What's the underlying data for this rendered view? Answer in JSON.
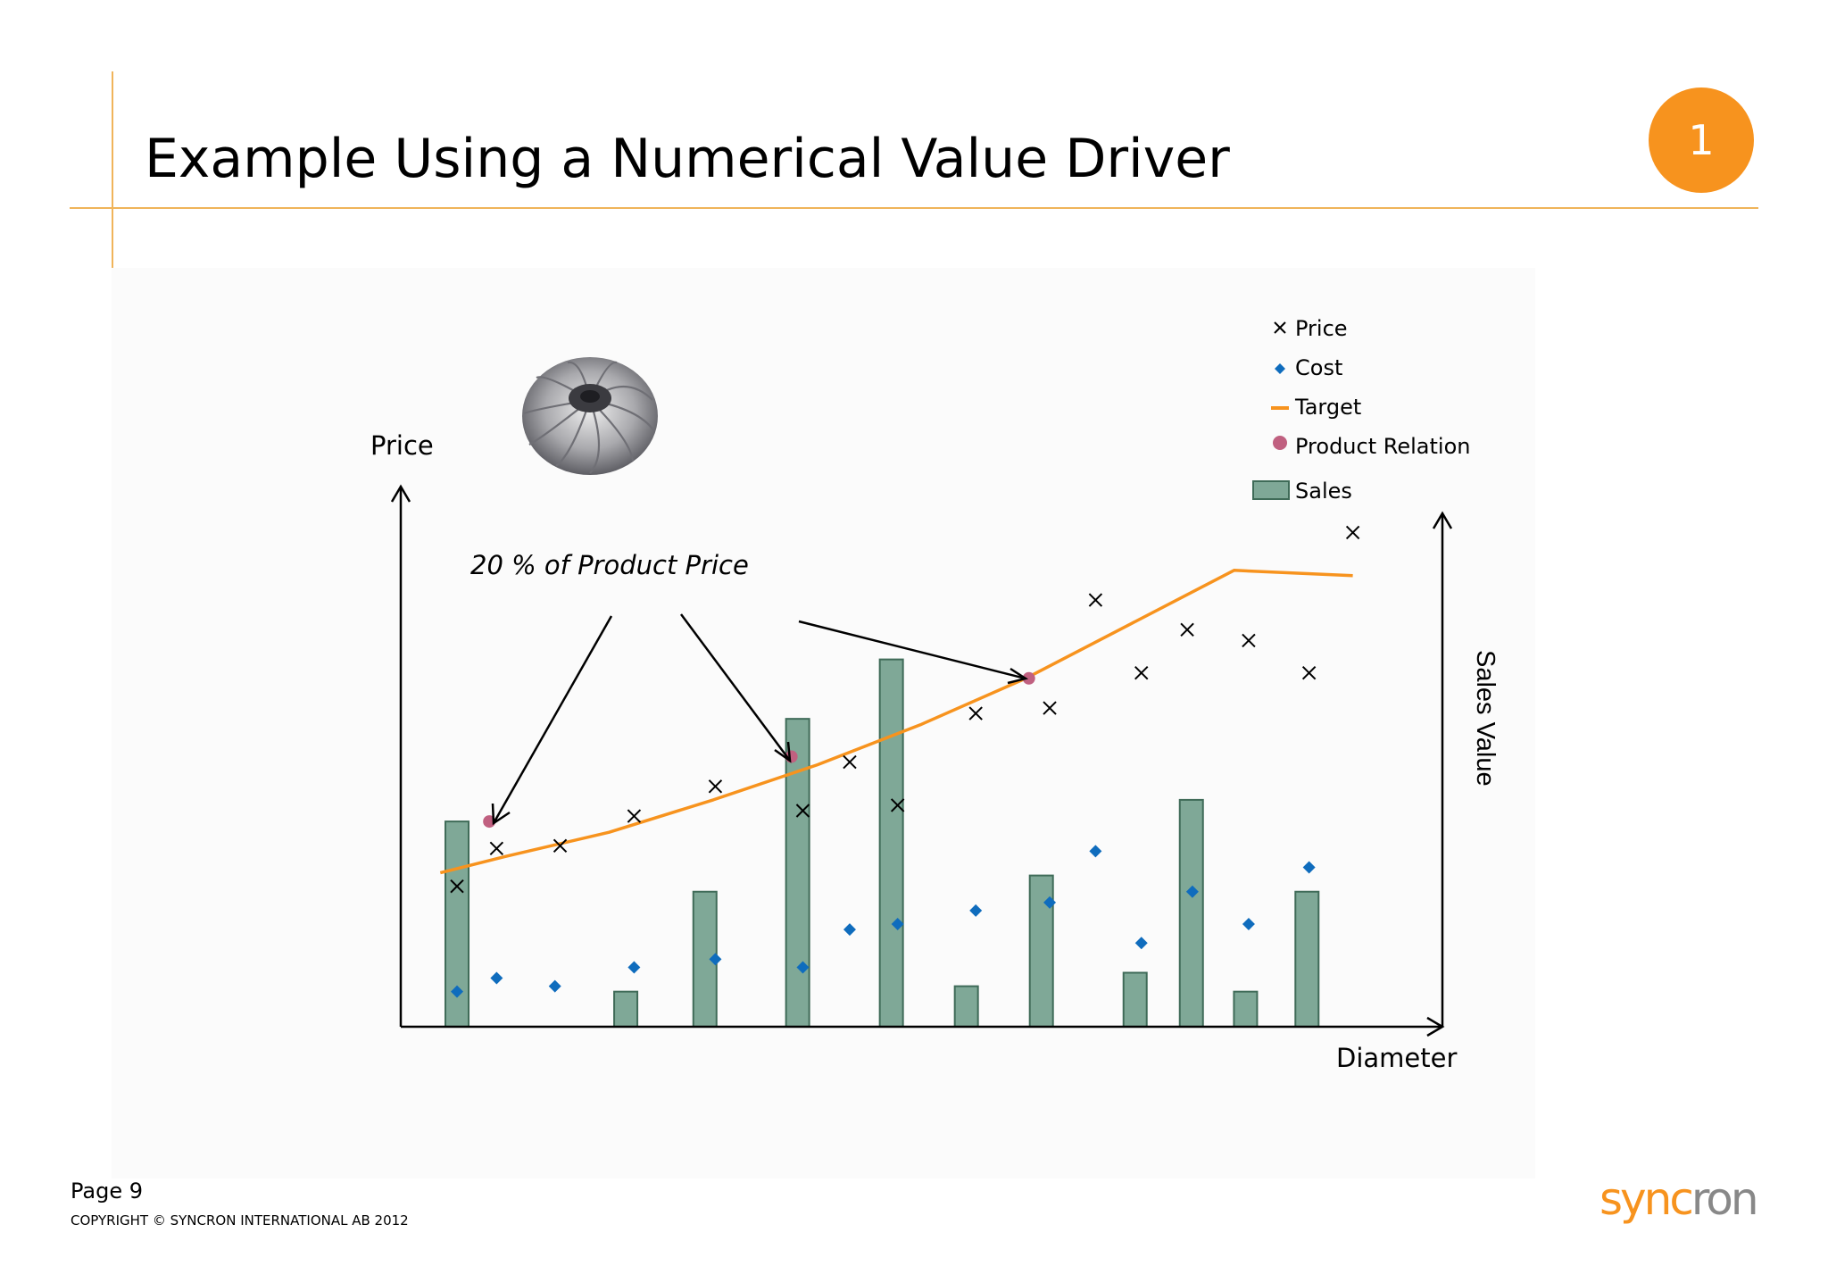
{
  "slide": {
    "title": "Example Using a Numerical Value Driver",
    "badge": "1",
    "page": "Page 9",
    "copyright": "COPYRIGHT © SYNCRON INTERNATIONAL AB 2012",
    "logo": {
      "part1": "sync",
      "part2": "ron",
      "color1": "#f7931e",
      "color2": "#888888"
    },
    "image_icon": "turbine-impeller-image",
    "accent": "#f7931e"
  },
  "chart_data": {
    "type": "bar",
    "xlabel": "Diameter",
    "ylabel": "Price",
    "y2label": "Sales Value",
    "annotation": "20 % of Product Price",
    "grid": false,
    "ticks": false,
    "legend_position": "top-right",
    "legend": [
      {
        "label": "Price",
        "symbol": "x",
        "color": "#000000"
      },
      {
        "label": "Cost",
        "symbol": "diamond",
        "color": "#0f6cbd"
      },
      {
        "label": "Target",
        "symbol": "line",
        "color": "#f7931e"
      },
      {
        "label": "Product Relation",
        "symbol": "circle",
        "color": "#c06080"
      },
      {
        "label": "Sales",
        "symbol": "bar",
        "color": "#7fa897"
      }
    ],
    "xlim": [
      0,
      100
    ],
    "ylim": [
      0,
      100
    ],
    "sales": {
      "color": "#7fa897",
      "x": [
        5.4,
        21.6,
        29.2,
        38.1,
        47.1,
        54.3,
        61.5,
        70.5,
        75.9,
        81.1,
        87.0
      ],
      "values": [
        38,
        6.5,
        25,
        57,
        68,
        7.5,
        28,
        10,
        42,
        6.5,
        25
      ]
    },
    "price": {
      "color": "#000000",
      "x": [
        5.4,
        9.2,
        15.3,
        22.4,
        30.2,
        38.6,
        43.1,
        47.7,
        55.2,
        62.3,
        66.7,
        71.1,
        75.5,
        81.4,
        87.2,
        91.4
      ],
      "values": [
        26,
        33,
        33.5,
        39,
        44.5,
        40,
        49,
        41,
        58,
        59,
        79,
        65.5,
        73.5,
        71.5,
        65.5,
        91.5
      ]
    },
    "cost": {
      "color": "#0f6cbd",
      "x": [
        5.4,
        9.2,
        14.8,
        22.4,
        30.2,
        38.6,
        43.1,
        47.7,
        55.2,
        62.3,
        66.7,
        71.1,
        76.0,
        81.4,
        87.2
      ],
      "values": [
        6.5,
        9.0,
        7.5,
        11.0,
        12.5,
        11.0,
        18.0,
        19.0,
        21.5,
        23.0,
        32.5,
        15.5,
        25.0,
        19.0,
        29.5
      ]
    },
    "target": {
      "color": "#f7931e",
      "x": [
        3.8,
        10,
        20,
        30,
        40,
        50,
        60,
        70,
        80,
        91.4
      ],
      "values": [
        28.5,
        31.5,
        36,
        42,
        48.5,
        56,
        64.5,
        74.5,
        84.5,
        83.5
      ]
    },
    "product_relation": {
      "color": "#c06080",
      "x": [
        8.5,
        37.5,
        60.3
      ],
      "values": [
        38,
        50,
        64.5
      ]
    }
  }
}
